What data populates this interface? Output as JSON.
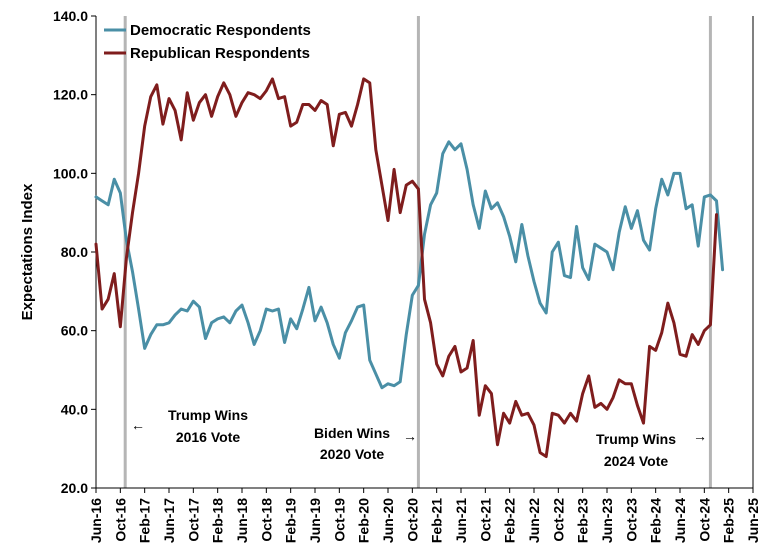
{
  "chart_data": {
    "type": "line",
    "ylabel": "Expectations Index",
    "ylim": [
      20,
      140
    ],
    "y_ticks": [
      "20.0",
      "40.0",
      "60.0",
      "80.0",
      "100.0",
      "120.0",
      "140.0"
    ],
    "xlim": [
      "2016-06",
      "2025-06"
    ],
    "x_ticks": [
      "Jun-16",
      "Oct-16",
      "Feb-17",
      "Jun-17",
      "Oct-17",
      "Feb-18",
      "Jun-18",
      "Oct-18",
      "Feb-19",
      "Jun-19",
      "Oct-19",
      "Feb-20",
      "Jun-20",
      "Oct-20",
      "Feb-21",
      "Jun-21",
      "Oct-21",
      "Feb-22",
      "Jun-22",
      "Oct-22",
      "Feb-23",
      "Jun-23",
      "Oct-23",
      "Feb-24",
      "Jun-24",
      "Oct-24",
      "Feb-25",
      "Jun-25"
    ],
    "legend_position": "top-left",
    "grid": false,
    "series": [
      {
        "name": "Democratic Respondents",
        "color": "#4a8fa6",
        "start": "2016-06",
        "values": [
          94,
          93,
          92,
          98.5,
          95,
          83,
          75,
          65.5,
          55.5,
          59,
          61.5,
          61.5,
          62,
          64,
          65.5,
          65,
          67.5,
          66,
          58,
          62,
          63,
          63.5,
          62,
          65,
          66.5,
          62,
          56.5,
          60,
          65.5,
          65,
          65.5,
          57,
          63,
          60.5,
          65.5,
          71,
          62.5,
          66,
          62,
          56.5,
          53,
          59.5,
          62.5,
          66,
          66.5,
          52.5,
          49,
          45.5,
          46.5,
          46,
          47,
          59,
          69,
          71.5,
          84.5,
          92,
          95,
          105,
          108,
          106,
          107.5,
          101,
          92,
          86,
          95.5,
          91,
          92.5,
          89,
          84,
          77.5,
          87,
          79,
          72.5,
          67,
          64.5,
          80,
          82.5,
          74,
          73.5,
          86.5,
          76,
          73,
          82,
          81,
          80,
          75.5,
          85,
          91.5,
          86,
          90.5,
          83,
          80.5,
          91,
          98.5,
          94.5,
          100,
          100,
          91,
          92,
          81.5,
          94,
          94.5,
          93,
          75.5
        ]
      },
      {
        "name": "Republican Respondents",
        "color": "#7f1d1d",
        "start": "2016-06",
        "values": [
          82,
          65.5,
          68,
          74.5,
          61,
          78.5,
          90,
          100,
          112,
          119.5,
          122.5,
          112.5,
          119,
          116,
          108.5,
          120.5,
          113.5,
          118,
          120,
          114.5,
          119.5,
          123,
          120,
          114.5,
          118,
          120.5,
          120,
          119,
          121,
          124,
          119,
          119.5,
          112,
          113,
          117.5,
          117.5,
          116,
          118.5,
          117.5,
          107,
          115,
          115.5,
          112,
          117.5,
          124,
          123,
          106,
          97,
          88,
          101,
          90,
          97,
          98,
          96,
          68,
          62,
          51.5,
          48.5,
          53.5,
          56,
          49.5,
          50.5,
          57.5,
          38.5,
          46,
          44,
          31,
          39,
          36.5,
          42,
          38.5,
          39,
          36,
          29,
          28,
          39,
          38.5,
          36.5,
          39,
          37,
          44,
          48.5,
          40.5,
          41.5,
          40,
          43,
          47.5,
          46.5,
          46.5,
          41,
          36.5,
          56,
          55,
          59.5,
          67,
          62,
          54,
          53.5,
          59,
          56.5,
          60,
          61.5,
          89.5
        ]
      }
    ],
    "vertical_markers": [
      {
        "date": "2016-10.8",
        "label_line1": "Trump Wins",
        "label_line2": "2016 Vote",
        "arrow": "←"
      },
      {
        "date": "2020-11",
        "label_line1": "Biden Wins",
        "label_line2": "2020 Vote",
        "arrow": "→"
      },
      {
        "date": "2024-11",
        "label_line1": "Trump Wins",
        "label_line2": "2024 Vote",
        "arrow": "→"
      }
    ]
  }
}
